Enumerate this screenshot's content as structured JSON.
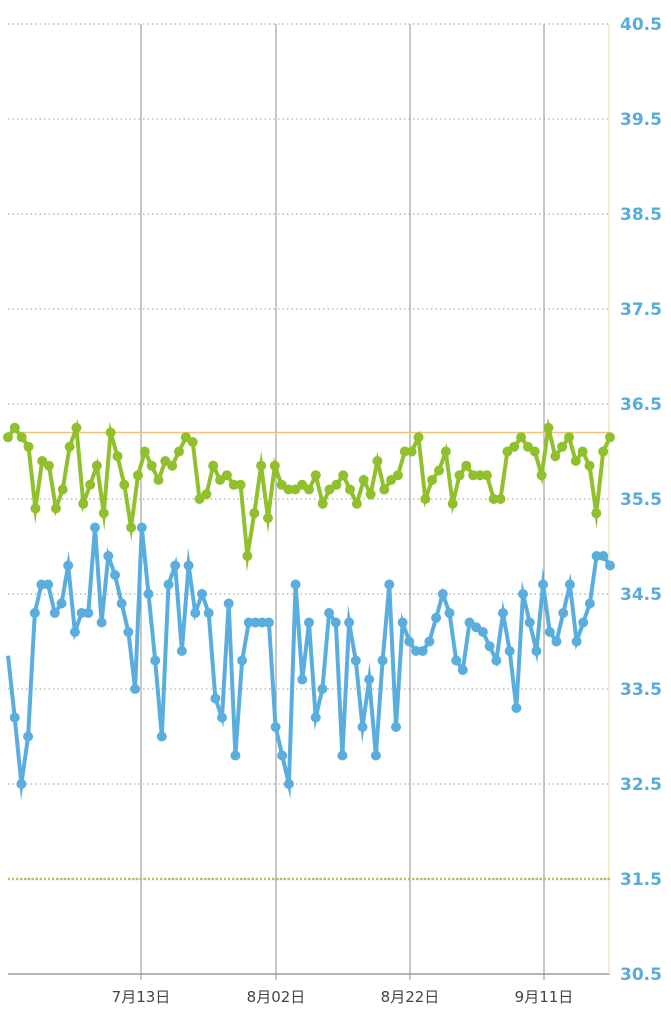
{
  "colors": {
    "series_a": "#90C02C",
    "series_b": "#5AAEDD",
    "reference_line": "#F2C27A",
    "low_line": "#A9CC55",
    "ytick": "#58ACDA"
  },
  "chart_data": {
    "type": "line",
    "xlabel": "",
    "ylabel": "",
    "ylim": [
      30.5,
      40.5
    ],
    "yticks": [
      "40.5",
      "39.5",
      "38.5",
      "37.5",
      "36.5",
      "35.5",
      "34.5",
      "33.5",
      "32.5",
      "31.5",
      "30.5"
    ],
    "xtick_labels": [
      "7月13日",
      "8月02日",
      "8月22日",
      "9月11日"
    ],
    "grid": true,
    "reference_lines": [
      {
        "value": 36.2,
        "color": "#F2C27A"
      },
      {
        "value": 31.5,
        "color": "#A9CC55",
        "style": "dotted"
      }
    ],
    "series": [
      {
        "values": [
          36.15,
          36.25,
          36.15,
          36.05,
          35.4,
          35.9,
          35.85,
          35.4,
          35.6,
          36.05,
          36.25,
          35.45,
          35.65,
          35.85,
          35.35,
          36.2,
          35.95,
          35.65,
          35.2,
          35.75,
          36.0,
          35.85,
          35.7,
          35.9,
          35.85,
          36.0,
          36.15,
          36.1,
          35.5,
          35.55,
          35.85,
          35.7,
          35.75,
          35.65,
          35.65,
          34.9,
          35.35,
          35.85,
          35.3,
          35.85,
          35.65,
          35.6,
          35.6,
          35.65,
          35.6,
          35.75,
          35.45,
          35.6,
          35.65,
          35.75,
          35.6,
          35.45,
          35.7,
          35.55,
          35.9,
          35.6,
          35.7,
          35.75,
          36.0,
          36.0,
          36.15,
          35.5,
          35.7,
          35.8,
          36.0,
          35.45,
          35.75,
          35.85,
          35.75,
          35.75,
          35.75,
          35.5,
          35.5,
          36.0,
          36.05,
          36.15,
          36.05,
          36.0,
          35.75,
          36.25,
          35.95,
          36.05,
          36.15,
          35.9,
          36.0,
          35.85,
          35.35,
          36.0,
          36.15
        ]
      },
      {
        "values": [
          33.85,
          33.2,
          32.5,
          33.0,
          34.3,
          34.6,
          34.6,
          34.3,
          34.4,
          34.8,
          34.1,
          34.3,
          34.3,
          35.2,
          34.2,
          34.9,
          34.7,
          34.4,
          34.1,
          33.5,
          35.2,
          34.5,
          33.8,
          33.0,
          34.6,
          34.8,
          33.9,
          34.8,
          34.3,
          34.5,
          34.3,
          33.4,
          33.2,
          34.4,
          32.8,
          33.8,
          34.2,
          34.2,
          34.2,
          34.2,
          33.1,
          32.8,
          32.5,
          34.6,
          33.6,
          34.2,
          33.2,
          33.5,
          34.3,
          34.2,
          32.8,
          34.2,
          33.8,
          33.1,
          33.6,
          32.8,
          33.8,
          34.6,
          33.1,
          34.2,
          34.0,
          33.9,
          33.9,
          34.0,
          34.25,
          34.5,
          34.3,
          33.8,
          33.7,
          34.2,
          34.15,
          34.1,
          33.95,
          33.8,
          34.3,
          33.9,
          33.3,
          34.5,
          34.2,
          33.9,
          34.6,
          34.1,
          34.0,
          34.3,
          34.6,
          34.0,
          34.2,
          34.4,
          34.9,
          34.9,
          34.8
        ]
      }
    ]
  }
}
